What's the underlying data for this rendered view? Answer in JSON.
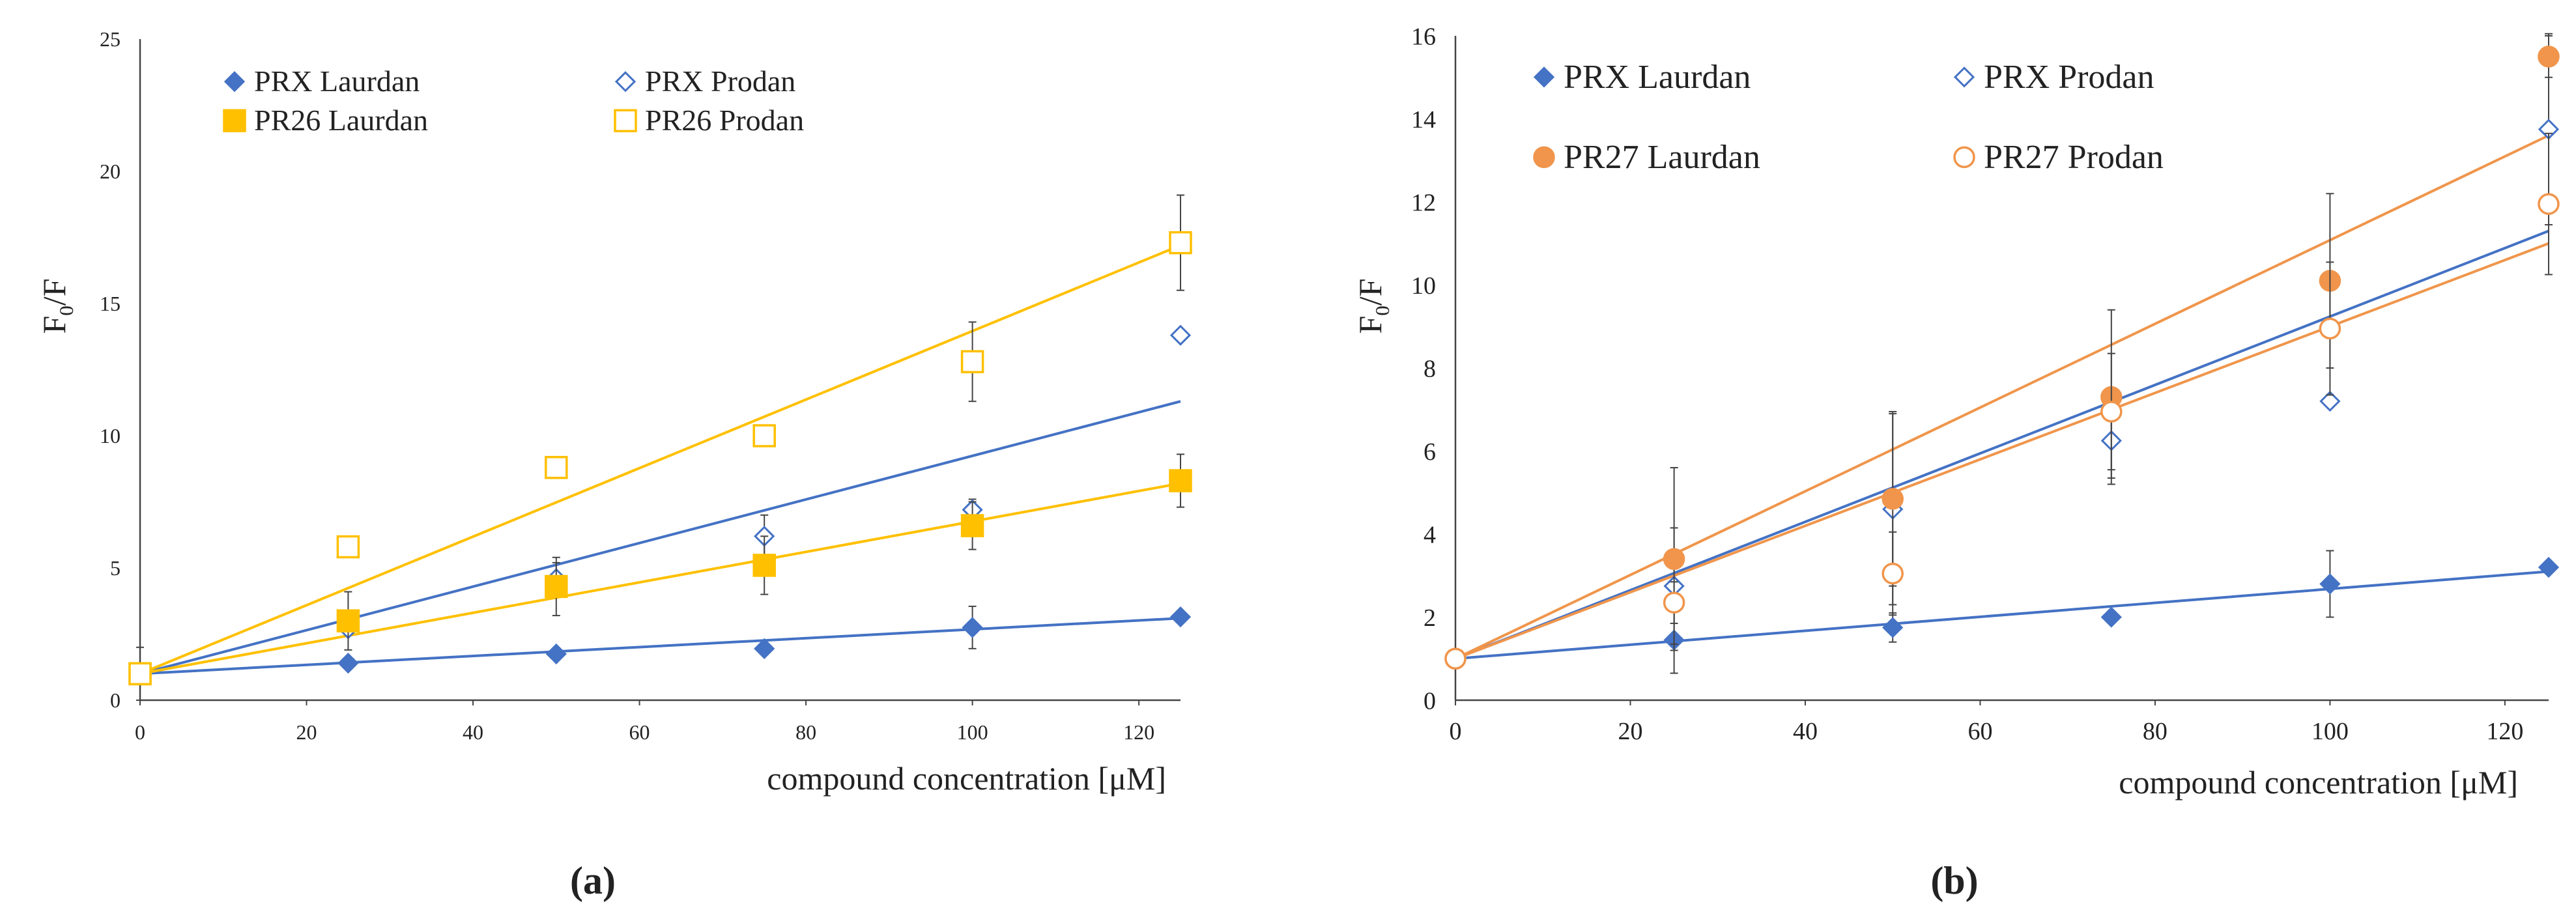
{
  "colors": {
    "blue": "#4472C4",
    "gold": "#FFC000",
    "orange": "#F0954B",
    "axis": "#444444",
    "error": "#444444"
  },
  "chart_data": [
    {
      "type": "scatter",
      "panel_label": "(a)",
      "xlabel": "compound concentration [μM]",
      "ylabel": "F0/F",
      "ylabel_main": "F",
      "ylabel_sub": "0",
      "ylabel_tail": "/F",
      "xlim": [
        0,
        125
      ],
      "ylim": [
        0,
        25
      ],
      "xticks": [
        0,
        20,
        40,
        60,
        80,
        100,
        120
      ],
      "yticks": [
        0,
        5,
        10,
        15,
        20,
        25
      ],
      "legend": [
        "PRX Laurdan",
        "PRX Prodan",
        "PR26 Laurdan",
        "PR26 Prodan"
      ],
      "series": [
        {
          "name": "PRX Laurdan",
          "marker": "diamond-filled",
          "color": "#4472C4",
          "x": [
            0,
            25,
            50,
            75,
            100,
            125
          ],
          "y": [
            1.0,
            1.4,
            1.75,
            1.95,
            2.75,
            3.15
          ],
          "err": [
            0,
            0.1,
            0.1,
            0.1,
            0.8,
            0.1
          ],
          "fit": [
            1.0,
            3.1
          ]
        },
        {
          "name": "PRX Prodan",
          "marker": "diamond-open",
          "color": "#4472C4",
          "x": [
            0,
            25,
            50,
            75,
            100,
            125
          ],
          "y": [
            1.0,
            2.7,
            4.6,
            6.2,
            7.2,
            13.8
          ],
          "err": [
            0,
            0.2,
            0.6,
            0.8,
            0.4,
            0.1
          ],
          "fit": [
            1.0,
            11.3
          ]
        },
        {
          "name": "PR26 Laurdan",
          "marker": "square-filled",
          "color": "#FFC000",
          "x": [
            0,
            25,
            50,
            75,
            100,
            125
          ],
          "y": [
            1.0,
            3.0,
            4.3,
            5.1,
            6.6,
            8.3
          ],
          "err": [
            0,
            1.1,
            1.1,
            1.1,
            0.9,
            1.0
          ],
          "fit": [
            1.0,
            8.2
          ]
        },
        {
          "name": "PR26 Prodan",
          "marker": "square-open",
          "color": "#FFC000",
          "x": [
            0,
            25,
            50,
            75,
            100,
            125
          ],
          "y": [
            1.0,
            5.8,
            8.8,
            10.0,
            12.8,
            17.3
          ],
          "err": [
            1.0,
            0.4,
            0,
            0.4,
            1.5,
            1.8
          ],
          "fit": [
            1.0,
            17.2
          ]
        }
      ]
    },
    {
      "type": "scatter",
      "panel_label": "(b)",
      "xlabel": "compound concentration [μM]",
      "ylabel": "F0/F",
      "ylabel_main": "F",
      "ylabel_sub": "0",
      "ylabel_tail": "/F",
      "xlim": [
        0,
        125
      ],
      "ylim": [
        0,
        16
      ],
      "xticks": [
        0,
        20,
        40,
        60,
        80,
        100,
        120
      ],
      "yticks": [
        0,
        2,
        4,
        6,
        8,
        10,
        12,
        14,
        16
      ],
      "legend": [
        "PRX Laurdan",
        "PRX Prodan",
        "PR27 Laurdan",
        "PR27 Prodan"
      ],
      "series": [
        {
          "name": "PRX Laurdan",
          "marker": "diamond-filled",
          "color": "#4472C4",
          "x": [
            0,
            25,
            50,
            75,
            100,
            125
          ],
          "y": [
            1.0,
            1.45,
            1.75,
            2.0,
            2.8,
            3.2
          ],
          "err": [
            0,
            0.8,
            0.35,
            0.1,
            0.8,
            0.1
          ],
          "fit": [
            1.0,
            3.1
          ]
        },
        {
          "name": "PRX Prodan",
          "marker": "diamond-open",
          "color": "#4472C4",
          "x": [
            0,
            25,
            50,
            75,
            100,
            125
          ],
          "y": [
            1.0,
            2.75,
            4.6,
            6.25,
            7.2,
            13.75
          ],
          "err": [
            0,
            1.4,
            2.3,
            0.9,
            0.1,
            2.3
          ],
          "fit": [
            1.0,
            11.3
          ]
        },
        {
          "name": "PR27 Laurdan",
          "marker": "circle-filled",
          "color": "#F0954B",
          "x": [
            0,
            25,
            50,
            75,
            100,
            125
          ],
          "y": [
            1.0,
            3.4,
            4.85,
            7.3,
            10.1,
            15.5
          ],
          "err": [
            0,
            2.2,
            2.1,
            2.1,
            2.1,
            0.5
          ],
          "fit": [
            1.0,
            13.6
          ]
        },
        {
          "name": "PR27 Prodan",
          "marker": "circle-open",
          "color": "#F0954B",
          "x": [
            0,
            25,
            50,
            75,
            100,
            125
          ],
          "y": [
            1.0,
            2.35,
            3.05,
            6.95,
            8.95,
            11.95
          ],
          "err": [
            0,
            0.5,
            1.0,
            1.4,
            1.6,
            1.7
          ],
          "fit": [
            1.0,
            11.0
          ]
        }
      ]
    }
  ]
}
